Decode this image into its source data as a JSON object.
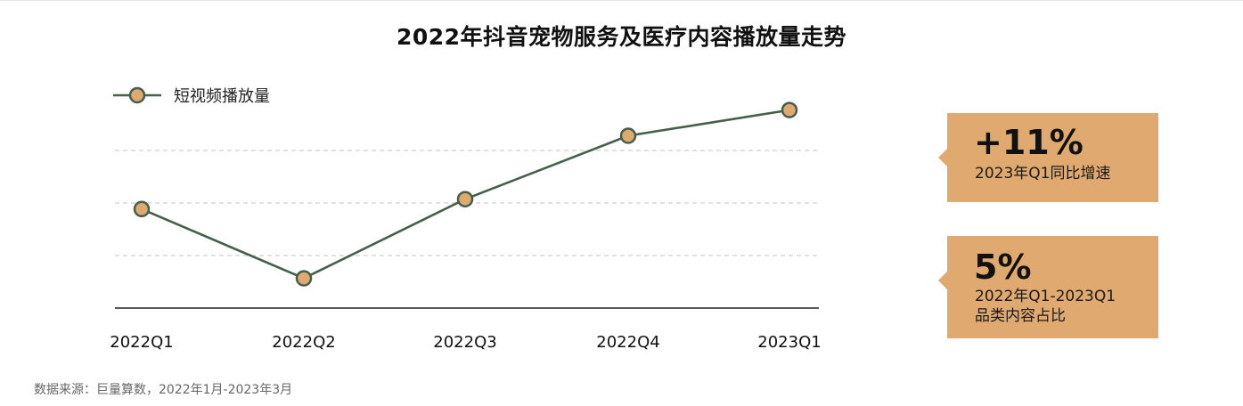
{
  "title": "2022年抖音宠物服务及医疗内容播放量走势",
  "legend": {
    "label": "短视频播放量"
  },
  "colors": {
    "line": "#44604a",
    "marker_fill": "#e0a96f",
    "callout_bg": "#e0a96f",
    "gridline": "#d0d0d0",
    "axis": "#222222"
  },
  "chart_data": {
    "type": "line",
    "title": "2022年抖音宠物服务及医疗内容播放量走势",
    "xlabel": "",
    "ylabel": "",
    "categories": [
      "2022Q1",
      "2022Q2",
      "2022Q3",
      "2022Q4",
      "2023Q1"
    ],
    "series": [
      {
        "name": "短视频播放量",
        "values": [
          50,
          15,
          55,
          87,
          100
        ]
      }
    ],
    "ylim": [
      0,
      107
    ],
    "y_axis_visible": false,
    "grid": "horizontal-dashed",
    "legend_position": "top-left"
  },
  "callouts": [
    {
      "big": "+11%",
      "lines": [
        "2023年Q1同比增速"
      ]
    },
    {
      "big": "5%",
      "lines": [
        "2022年Q1-2023Q1",
        "品类内容占比"
      ]
    }
  ],
  "source": "数据来源：巨量算数，2022年1月-2023年3月"
}
